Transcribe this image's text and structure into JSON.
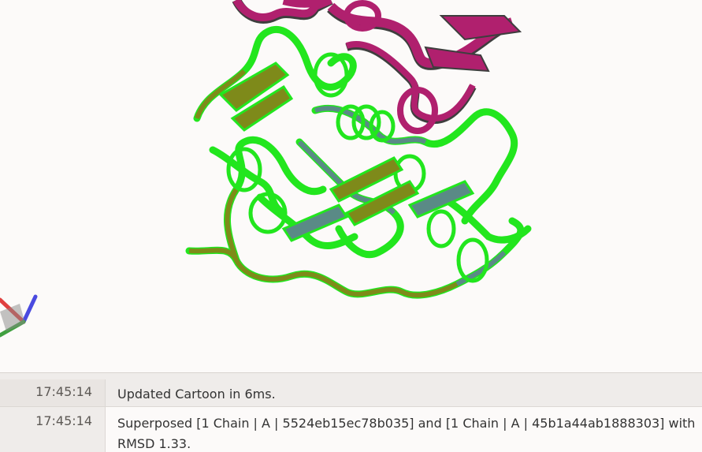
{
  "viewer": {
    "colors": {
      "background": "#fcfaf9",
      "chain_a_highlight": "#22e61e",
      "chain_a_helix": "#7e8a1a",
      "chain_a_sheet": "#5a8a86",
      "chain_b": "#b0206e",
      "chain_b_shadow": "#3e3e3e"
    }
  },
  "log": {
    "entries": [
      {
        "time": "17:45:14",
        "message": "Updated Cartoon in 6ms."
      },
      {
        "time": "17:45:14",
        "message": "Superposed [1 Chain | A | 5524eb15ec78b035] and [1 Chain | A | 45b1a44ab1888303] with RMSD 1.33."
      }
    ]
  }
}
